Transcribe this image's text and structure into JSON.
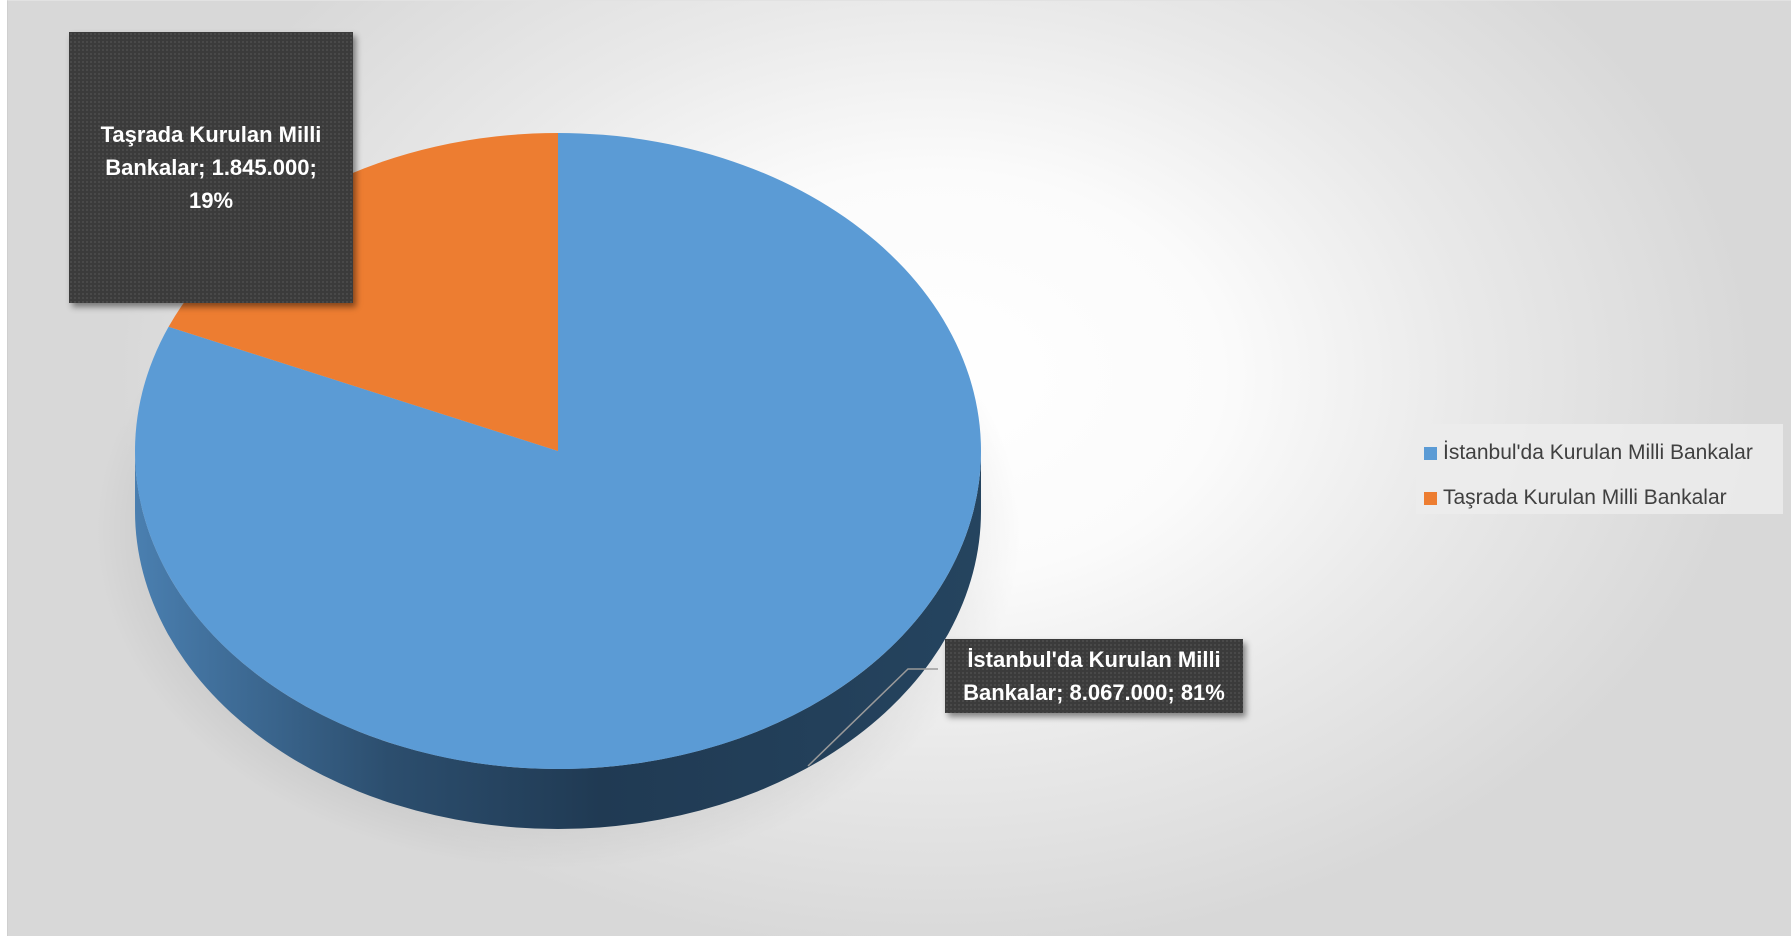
{
  "chart_data": {
    "type": "pie",
    "style": "3d",
    "title": "",
    "slices": [
      {
        "name": "İstanbul'da Kurulan Milli Bankalar",
        "value": 8067000,
        "percent": 81,
        "color": "#5b9bd5",
        "label": "İstanbul'da Kurulan Milli Bankalar; 8.067.000; 81%"
      },
      {
        "name": "Taşrada Kurulan Milli Bankalar",
        "value": 1845000,
        "percent": 19,
        "color": "#ed7d31",
        "label": "Taşrada Kurulan Milli Bankalar; 1.845.000; 19%"
      }
    ],
    "legend_position": "right",
    "legend": [
      "İstanbul'da Kurulan Milli Bankalar",
      "Taşrada Kurulan Milli Bankalar"
    ]
  }
}
